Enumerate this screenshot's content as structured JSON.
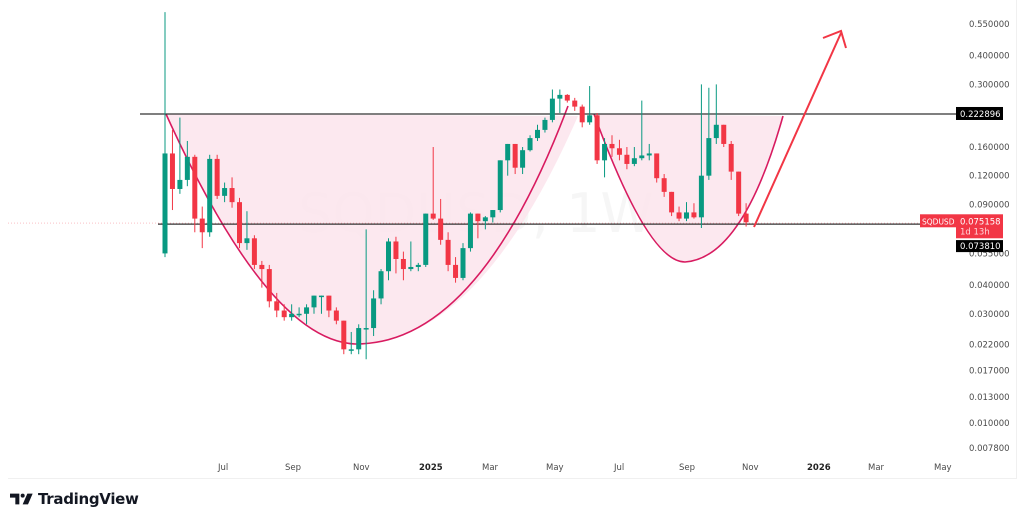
{
  "brand": {
    "name": "TradingView",
    "logo_icon": "tradingview-logo-icon"
  },
  "colors": {
    "up": "#089981",
    "down": "#f23645",
    "pattern_fill": "#fce4ec",
    "pattern_stroke": "#d81b60",
    "arrow": "#f23645",
    "level_line": "#333333",
    "price_tag_bg": "#f23645",
    "level_tag_bg": "#000000"
  },
  "chart_data": {
    "type": "candlestick",
    "title": "SQDUSD, 1W",
    "symbol": "SQDUSD",
    "interval": "1W",
    "xlabel": "",
    "ylabel": "",
    "y_scale": "log",
    "ylim": [
      0.0072,
      0.72
    ],
    "grid": false,
    "y_ticks": [
      "0.550000",
      "0.400000",
      "0.300000",
      "0.160000",
      "0.120000",
      "0.090000",
      "0.055000",
      "0.040000",
      "0.030000",
      "0.022000",
      "0.017000",
      "0.013000",
      "0.010000",
      "0.007800"
    ],
    "x_ticks": [
      {
        "label": "Jul",
        "bold": false
      },
      {
        "label": "Sep",
        "bold": false
      },
      {
        "label": "Nov",
        "bold": false
      },
      {
        "label": "2025",
        "bold": true
      },
      {
        "label": "Mar",
        "bold": false
      },
      {
        "label": "May",
        "bold": false
      },
      {
        "label": "Jul",
        "bold": false
      },
      {
        "label": "Sep",
        "bold": false
      },
      {
        "label": "Nov",
        "bold": false
      },
      {
        "label": "2026",
        "bold": true
      },
      {
        "label": "Mar",
        "bold": false
      },
      {
        "label": "May",
        "bold": false
      }
    ],
    "current_price": {
      "label": "SQDUSD",
      "value": "0.075158",
      "countdown": "1d 13h"
    },
    "horizontal_levels": [
      {
        "name": "resistance",
        "value": "0.222896"
      },
      {
        "name": "support",
        "value": "0.073810"
      }
    ],
    "annotations": [
      {
        "type": "cup",
        "label": "cup (rounded bottom)",
        "from": "Jun 2024",
        "to": "May 2025"
      },
      {
        "type": "handle",
        "label": "handle",
        "from": "Jun 2025",
        "to": "Nov 2025"
      },
      {
        "type": "arrow",
        "label": "projected breakout upward",
        "target_approx": 0.6
      }
    ],
    "candles": [
      {
        "o": 0.055,
        "h": 0.62,
        "l": 0.053,
        "c": 0.15
      },
      {
        "o": 0.15,
        "h": 0.19,
        "l": 0.085,
        "c": 0.105
      },
      {
        "o": 0.105,
        "h": 0.215,
        "l": 0.1,
        "c": 0.115
      },
      {
        "o": 0.115,
        "h": 0.17,
        "l": 0.108,
        "c": 0.145
      },
      {
        "o": 0.145,
        "h": 0.148,
        "l": 0.068,
        "c": 0.078
      },
      {
        "o": 0.078,
        "h": 0.088,
        "l": 0.058,
        "c": 0.068
      },
      {
        "o": 0.068,
        "h": 0.148,
        "l": 0.065,
        "c": 0.142
      },
      {
        "o": 0.142,
        "h": 0.148,
        "l": 0.095,
        "c": 0.098
      },
      {
        "o": 0.098,
        "h": 0.112,
        "l": 0.092,
        "c": 0.106
      },
      {
        "o": 0.106,
        "h": 0.118,
        "l": 0.087,
        "c": 0.092
      },
      {
        "o": 0.092,
        "h": 0.096,
        "l": 0.058,
        "c": 0.061
      },
      {
        "o": 0.061,
        "h": 0.084,
        "l": 0.057,
        "c": 0.064
      },
      {
        "o": 0.064,
        "h": 0.066,
        "l": 0.047,
        "c": 0.049
      },
      {
        "o": 0.049,
        "h": 0.051,
        "l": 0.039,
        "c": 0.047
      },
      {
        "o": 0.047,
        "h": 0.049,
        "l": 0.032,
        "c": 0.034
      },
      {
        "o": 0.034,
        "h": 0.037,
        "l": 0.029,
        "c": 0.031
      },
      {
        "o": 0.031,
        "h": 0.033,
        "l": 0.028,
        "c": 0.029
      },
      {
        "o": 0.029,
        "h": 0.033,
        "l": 0.028,
        "c": 0.03
      },
      {
        "o": 0.03,
        "h": 0.032,
        "l": 0.029,
        "c": 0.03
      },
      {
        "o": 0.03,
        "h": 0.033,
        "l": 0.027,
        "c": 0.032
      },
      {
        "o": 0.032,
        "h": 0.036,
        "l": 0.03,
        "c": 0.036
      },
      {
        "o": 0.036,
        "h": 0.036,
        "l": 0.03,
        "c": 0.036
      },
      {
        "o": 0.036,
        "h": 0.036,
        "l": 0.029,
        "c": 0.031
      },
      {
        "o": 0.031,
        "h": 0.032,
        "l": 0.027,
        "c": 0.028
      },
      {
        "o": 0.028,
        "h": 0.028,
        "l": 0.02,
        "c": 0.021
      },
      {
        "o": 0.021,
        "h": 0.025,
        "l": 0.02,
        "c": 0.021
      },
      {
        "o": 0.021,
        "h": 0.027,
        "l": 0.02,
        "c": 0.026
      },
      {
        "o": 0.026,
        "h": 0.07,
        "l": 0.019,
        "c": 0.026
      },
      {
        "o": 0.026,
        "h": 0.038,
        "l": 0.024,
        "c": 0.035
      },
      {
        "o": 0.035,
        "h": 0.047,
        "l": 0.033,
        "c": 0.046
      },
      {
        "o": 0.046,
        "h": 0.064,
        "l": 0.042,
        "c": 0.062
      },
      {
        "o": 0.062,
        "h": 0.065,
        "l": 0.045,
        "c": 0.052
      },
      {
        "o": 0.052,
        "h": 0.056,
        "l": 0.042,
        "c": 0.047
      },
      {
        "o": 0.047,
        "h": 0.062,
        "l": 0.046,
        "c": 0.048
      },
      {
        "o": 0.048,
        "h": 0.05,
        "l": 0.046,
        "c": 0.049
      },
      {
        "o": 0.049,
        "h": 0.082,
        "l": 0.048,
        "c": 0.082
      },
      {
        "o": 0.082,
        "h": 0.16,
        "l": 0.077,
        "c": 0.078
      },
      {
        "o": 0.078,
        "h": 0.095,
        "l": 0.06,
        "c": 0.063
      },
      {
        "o": 0.063,
        "h": 0.068,
        "l": 0.046,
        "c": 0.049
      },
      {
        "o": 0.049,
        "h": 0.053,
        "l": 0.041,
        "c": 0.043
      },
      {
        "o": 0.043,
        "h": 0.061,
        "l": 0.042,
        "c": 0.058
      },
      {
        "o": 0.058,
        "h": 0.083,
        "l": 0.056,
        "c": 0.082
      },
      {
        "o": 0.082,
        "h": 0.082,
        "l": 0.064,
        "c": 0.076
      },
      {
        "o": 0.076,
        "h": 0.08,
        "l": 0.07,
        "c": 0.079
      },
      {
        "o": 0.079,
        "h": 0.085,
        "l": 0.075,
        "c": 0.085
      },
      {
        "o": 0.085,
        "h": 0.14,
        "l": 0.083,
        "c": 0.14
      },
      {
        "o": 0.14,
        "h": 0.165,
        "l": 0.12,
        "c": 0.165
      },
      {
        "o": 0.165,
        "h": 0.165,
        "l": 0.122,
        "c": 0.13
      },
      {
        "o": 0.13,
        "h": 0.16,
        "l": 0.122,
        "c": 0.155
      },
      {
        "o": 0.155,
        "h": 0.18,
        "l": 0.153,
        "c": 0.175
      },
      {
        "o": 0.175,
        "h": 0.2,
        "l": 0.17,
        "c": 0.19
      },
      {
        "o": 0.19,
        "h": 0.215,
        "l": 0.185,
        "c": 0.21
      },
      {
        "o": 0.21,
        "h": 0.285,
        "l": 0.205,
        "c": 0.26
      },
      {
        "o": 0.26,
        "h": 0.285,
        "l": 0.225,
        "c": 0.27
      },
      {
        "o": 0.27,
        "h": 0.272,
        "l": 0.25,
        "c": 0.255
      },
      {
        "o": 0.255,
        "h": 0.262,
        "l": 0.23,
        "c": 0.24
      },
      {
        "o": 0.24,
        "h": 0.245,
        "l": 0.195,
        "c": 0.205
      },
      {
        "o": 0.205,
        "h": 0.295,
        "l": 0.2,
        "c": 0.22
      },
      {
        "o": 0.22,
        "h": 0.225,
        "l": 0.135,
        "c": 0.14
      },
      {
        "o": 0.14,
        "h": 0.175,
        "l": 0.118,
        "c": 0.165
      },
      {
        "o": 0.165,
        "h": 0.18,
        "l": 0.145,
        "c": 0.158
      },
      {
        "o": 0.158,
        "h": 0.172,
        "l": 0.14,
        "c": 0.148
      },
      {
        "o": 0.148,
        "h": 0.16,
        "l": 0.128,
        "c": 0.135
      },
      {
        "o": 0.135,
        "h": 0.16,
        "l": 0.132,
        "c": 0.143
      },
      {
        "o": 0.143,
        "h": 0.255,
        "l": 0.14,
        "c": 0.147
      },
      {
        "o": 0.147,
        "h": 0.165,
        "l": 0.14,
        "c": 0.15
      },
      {
        "o": 0.15,
        "h": 0.15,
        "l": 0.112,
        "c": 0.117
      },
      {
        "o": 0.117,
        "h": 0.122,
        "l": 0.097,
        "c": 0.102
      },
      {
        "o": 0.102,
        "h": 0.102,
        "l": 0.08,
        "c": 0.083
      },
      {
        "o": 0.083,
        "h": 0.088,
        "l": 0.076,
        "c": 0.078
      },
      {
        "o": 0.078,
        "h": 0.092,
        "l": 0.076,
        "c": 0.083
      },
      {
        "o": 0.083,
        "h": 0.091,
        "l": 0.078,
        "c": 0.079
      },
      {
        "o": 0.079,
        "h": 0.3,
        "l": 0.071,
        "c": 0.12
      },
      {
        "o": 0.12,
        "h": 0.29,
        "l": 0.115,
        "c": 0.175
      },
      {
        "o": 0.175,
        "h": 0.3,
        "l": 0.165,
        "c": 0.2
      },
      {
        "o": 0.2,
        "h": 0.2,
        "l": 0.16,
        "c": 0.165
      },
      {
        "o": 0.165,
        "h": 0.17,
        "l": 0.115,
        "c": 0.125
      },
      {
        "o": 0.125,
        "h": 0.125,
        "l": 0.08,
        "c": 0.082
      },
      {
        "o": 0.082,
        "h": 0.091,
        "l": 0.072,
        "c": 0.075158
      }
    ]
  },
  "y_axis": {
    "resistance_tag": "0.222896",
    "price_tag_symbol": "SQDUSD",
    "price_tag_value": "0.075158",
    "price_tag_countdown": "1d 13h",
    "support_tag": "0.073810"
  }
}
